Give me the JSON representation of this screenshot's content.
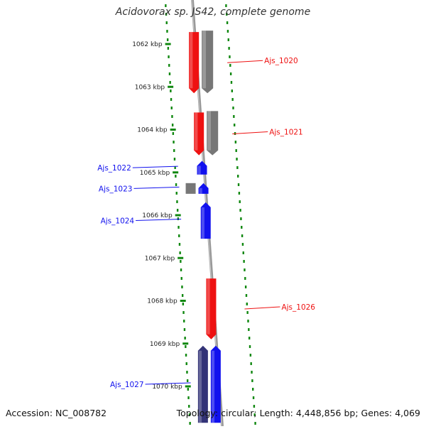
{
  "title": "Acidovorax sp. JS42, complete genome",
  "accession": "Accession: NC_008782",
  "summary": "Topology: circular; Length: 4,448,856 bp; Genes: 4,069",
  "colors": {
    "forward": "#ee1111",
    "reverse": "#1111ee",
    "forward_gray": "#777777",
    "reverse_dark": "#333377",
    "backbone": "#999999",
    "dots": "#118811"
  },
  "ticks": [
    {
      "label": "1062 kbp",
      "kbp": 1062
    },
    {
      "label": "1063 kbp",
      "kbp": 1063
    },
    {
      "label": "1064 kbp",
      "kbp": 1064
    },
    {
      "label": "1065 kbp",
      "kbp": 1065
    },
    {
      "label": "1066 kbp",
      "kbp": 1066
    },
    {
      "label": "1067 kbp",
      "kbp": 1067
    },
    {
      "label": "1068 kbp",
      "kbp": 1068
    },
    {
      "label": "1069 kbp",
      "kbp": 1069
    },
    {
      "label": "1070 kbp",
      "kbp": 1070
    }
  ],
  "genes": [
    {
      "name": "Ajs_1020",
      "strand": "forward",
      "start_kbp": 1061.72,
      "end_kbp": 1063.15,
      "gray_pair": true
    },
    {
      "name": "Ajs_1021",
      "strand": "forward",
      "start_kbp": 1063.6,
      "end_kbp": 1064.6,
      "gray_pair": true
    },
    {
      "name": "Ajs_1022",
      "strand": "reverse",
      "start_kbp": 1064.73,
      "end_kbp": 1065.05,
      "gray_pair": false
    },
    {
      "name": "Ajs_1023",
      "strand": "reverse",
      "start_kbp": 1065.25,
      "end_kbp": 1065.5,
      "gray_pair": true
    },
    {
      "name": "Ajs_1024",
      "strand": "reverse",
      "start_kbp": 1065.7,
      "end_kbp": 1066.55,
      "gray_pair": false
    },
    {
      "name": "Ajs_1026",
      "strand": "forward",
      "start_kbp": 1067.48,
      "end_kbp": 1068.9,
      "gray_pair": false
    },
    {
      "name": "Ajs_1027",
      "strand": "reverse",
      "start_kbp": 1069.05,
      "end_kbp": 1070.85,
      "gray_pair": true
    }
  ]
}
